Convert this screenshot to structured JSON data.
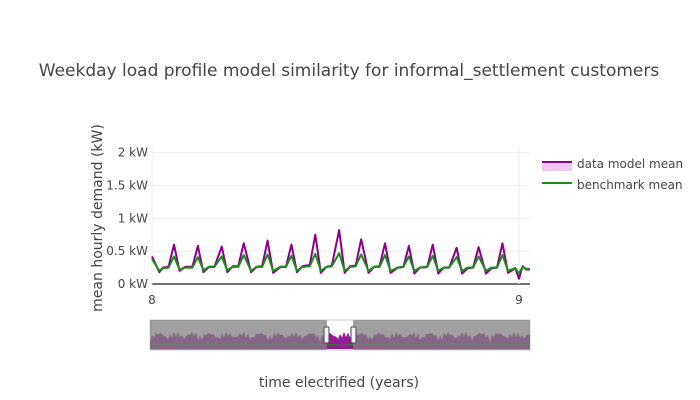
{
  "chart_data": {
    "type": "line",
    "title": "Weekday load profile model similarity for informal_settlement customers",
    "xlabel": "time electrified (years)",
    "ylabel": "mean hourly demand (kW)",
    "xlim": [
      8.0,
      9.03
    ],
    "ylim": [
      0,
      2.1
    ],
    "x_ticks": [
      8,
      9
    ],
    "x_tick_labels": [
      "8",
      "9"
    ],
    "y_ticks": [
      0,
      0.5,
      1,
      1.5,
      2
    ],
    "y_tick_labels": [
      "0 kW",
      "0.5 kW",
      "1 kW",
      "1.5 kW",
      "2 kW"
    ],
    "grid": true,
    "legend_position": "top-right",
    "range_slider": true,
    "series": [
      {
        "name": "data model mean",
        "color": "#8b008b",
        "band_color": "#f4c6f4",
        "x": [
          8.0,
          8.02,
          8.03,
          8.045,
          8.06,
          8.075,
          8.09,
          8.11,
          8.125,
          8.14,
          8.155,
          8.17,
          8.19,
          8.205,
          8.22,
          8.235,
          8.25,
          8.27,
          8.285,
          8.3,
          8.315,
          8.33,
          8.35,
          8.365,
          8.38,
          8.395,
          8.41,
          8.43,
          8.445,
          8.46,
          8.475,
          8.49,
          8.51,
          8.525,
          8.54,
          8.555,
          8.57,
          8.59,
          8.605,
          8.62,
          8.635,
          8.65,
          8.67,
          8.685,
          8.7,
          8.715,
          8.73,
          8.75,
          8.765,
          8.78,
          8.795,
          8.81,
          8.83,
          8.845,
          8.86,
          8.875,
          8.89,
          8.91,
          8.925,
          8.94,
          8.955,
          8.97,
          8.99,
          9.0,
          9.01,
          9.02,
          9.03
        ],
        "y": [
          0.42,
          0.18,
          0.25,
          0.26,
          0.6,
          0.2,
          0.26,
          0.26,
          0.58,
          0.18,
          0.26,
          0.26,
          0.57,
          0.18,
          0.27,
          0.27,
          0.62,
          0.18,
          0.26,
          0.27,
          0.66,
          0.17,
          0.26,
          0.26,
          0.6,
          0.18,
          0.27,
          0.29,
          0.75,
          0.17,
          0.26,
          0.28,
          0.82,
          0.17,
          0.27,
          0.28,
          0.68,
          0.17,
          0.26,
          0.27,
          0.62,
          0.17,
          0.25,
          0.26,
          0.58,
          0.16,
          0.25,
          0.26,
          0.6,
          0.16,
          0.25,
          0.25,
          0.55,
          0.16,
          0.24,
          0.25,
          0.56,
          0.16,
          0.24,
          0.25,
          0.62,
          0.17,
          0.24,
          0.08,
          0.27,
          0.22,
          0.22
        ]
      },
      {
        "name": "benchmark mean",
        "color": "#1a8c1a",
        "x": [
          8.0,
          8.02,
          8.03,
          8.045,
          8.06,
          8.075,
          8.09,
          8.11,
          8.125,
          8.14,
          8.155,
          8.17,
          8.19,
          8.205,
          8.22,
          8.235,
          8.25,
          8.27,
          8.285,
          8.3,
          8.315,
          8.33,
          8.35,
          8.365,
          8.38,
          8.395,
          8.41,
          8.43,
          8.445,
          8.46,
          8.475,
          8.49,
          8.51,
          8.525,
          8.54,
          8.555,
          8.57,
          8.59,
          8.605,
          8.62,
          8.635,
          8.65,
          8.67,
          8.685,
          8.7,
          8.715,
          8.73,
          8.75,
          8.765,
          8.78,
          8.795,
          8.81,
          8.83,
          8.845,
          8.86,
          8.875,
          8.89,
          8.91,
          8.925,
          8.94,
          8.955,
          8.97,
          8.99,
          9.0,
          9.01,
          9.02,
          9.03
        ],
        "y": [
          0.38,
          0.2,
          0.24,
          0.25,
          0.42,
          0.22,
          0.25,
          0.25,
          0.41,
          0.21,
          0.26,
          0.26,
          0.42,
          0.21,
          0.26,
          0.26,
          0.44,
          0.2,
          0.26,
          0.26,
          0.45,
          0.2,
          0.26,
          0.26,
          0.43,
          0.2,
          0.26,
          0.27,
          0.46,
          0.2,
          0.26,
          0.27,
          0.47,
          0.2,
          0.26,
          0.27,
          0.45,
          0.2,
          0.26,
          0.26,
          0.44,
          0.2,
          0.25,
          0.26,
          0.42,
          0.2,
          0.25,
          0.26,
          0.43,
          0.2,
          0.25,
          0.25,
          0.41,
          0.2,
          0.25,
          0.25,
          0.42,
          0.2,
          0.25,
          0.25,
          0.44,
          0.2,
          0.24,
          0.16,
          0.26,
          0.23,
          0.23
        ]
      }
    ]
  }
}
